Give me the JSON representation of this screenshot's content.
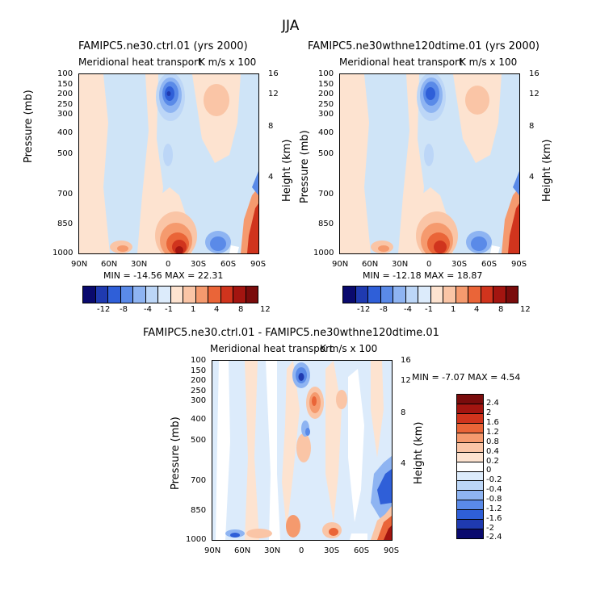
{
  "figure": {
    "title": "JJA"
  },
  "panels": [
    {
      "title": "FAMIPC5.ne30.ctrl.01 (yrs 2000)",
      "subtitle": "Meridional heat transport",
      "units": "K m/s x 100",
      "minmax": "MIN = -14.56   MAX =  22.31"
    },
    {
      "title": "FAMIPC5.ne30wthne120dtime.01 (yrs 2000)",
      "subtitle": "Meridional heat transport",
      "units": "K m/s x 100",
      "minmax": "MIN = -12.18   MAX =  18.87"
    },
    {
      "title": "FAMIPC5.ne30.ctrl.01 - FAMIPC5.ne30wthne120dtime.01",
      "subtitle": "Meridional heat transport",
      "units": "K m/s x 100",
      "minmax": "MIN =   -7.07   MAX =    4.54"
    }
  ],
  "axes": {
    "ylabel": "Pressure (mb)",
    "y2label": "Height (km)",
    "pressure_ticks": [
      "100",
      "150",
      "200",
      "250",
      "300",
      "400",
      "500",
      "700",
      "850",
      "1000"
    ],
    "height_ticks": [
      "16",
      "12",
      "8",
      "4"
    ],
    "lat_ticks": [
      "90N",
      "60N",
      "30N",
      "0",
      "30S",
      "60S",
      "90S"
    ]
  },
  "colorbars": {
    "top_labels": [
      "-12",
      "-8",
      "-4",
      "-1",
      "1",
      "4",
      "8",
      "12"
    ],
    "diff_labels": [
      "2.4",
      "2",
      "1.6",
      "1.2",
      "0.8",
      "0.4",
      "0.2",
      "0",
      "-0.2",
      "-0.4",
      "-0.8",
      "-1.2",
      "-1.6",
      "-2",
      "-2.4"
    ],
    "top_colors": [
      "#0a0a6e",
      "#1f3ab0",
      "#2f5fd8",
      "#5a8ae8",
      "#8eb4f2",
      "#bcd6f7",
      "#dcebfb",
      "#fde3d0",
      "#fac5a6",
      "#f59a6e",
      "#ea6538",
      "#d0341d",
      "#a31510",
      "#7a0c0c"
    ],
    "diff_colors": [
      "#7a0c0c",
      "#a31510",
      "#d0341d",
      "#ea6538",
      "#f59a6e",
      "#fac5a6",
      "#fde3d0",
      "#ffffff",
      "#dcebfb",
      "#bcd6f7",
      "#8eb4f2",
      "#5a8ae8",
      "#2f5fd8",
      "#1f3ab0",
      "#0a0a6e"
    ]
  },
  "chart_data": [
    {
      "type": "heatmap",
      "title": "FAMIPC5.ne30.ctrl.01 (yrs 2000)",
      "subtitle": "Meridional heat transport",
      "units": "K m/s x 100",
      "season": "JJA",
      "x": [
        "90N",
        "60N",
        "30N",
        "0",
        "30S",
        "60S",
        "90S"
      ],
      "xlim": [
        90,
        -90
      ],
      "ylabel": "Pressure (mb)",
      "ylim": [
        1000,
        100
      ],
      "y2label": "Height (km)",
      "min": -14.56,
      "max": 22.31,
      "levels": [
        -12,
        -8,
        -4,
        -1,
        1,
        4,
        8,
        12
      ]
    },
    {
      "type": "heatmap",
      "title": "FAMIPC5.ne30wthne120dtime.01 (yrs 2000)",
      "subtitle": "Meridional heat transport",
      "units": "K m/s x 100",
      "season": "JJA",
      "x": [
        "90N",
        "60N",
        "30N",
        "0",
        "30S",
        "60S",
        "90S"
      ],
      "xlim": [
        90,
        -90
      ],
      "ylabel": "Pressure (mb)",
      "ylim": [
        1000,
        100
      ],
      "y2label": "Height (km)",
      "min": -12.18,
      "max": 18.87,
      "levels": [
        -12,
        -8,
        -4,
        -1,
        1,
        4,
        8,
        12
      ]
    },
    {
      "type": "heatmap",
      "title": "FAMIPC5.ne30.ctrl.01 - FAMIPC5.ne30wthne120dtime.01",
      "subtitle": "Meridional heat transport",
      "units": "K m/s x 100",
      "season": "JJA",
      "x": [
        "90N",
        "60N",
        "30N",
        "0",
        "30S",
        "60S",
        "90S"
      ],
      "xlim": [
        90,
        -90
      ],
      "ylabel": "Pressure (mb)",
      "ylim": [
        1000,
        100
      ],
      "y2label": "Height (km)",
      "min": -7.07,
      "max": 4.54,
      "levels": [
        -2.4,
        -2,
        -1.6,
        -1.2,
        -0.8,
        -0.4,
        -0.2,
        0,
        0.2,
        0.4,
        0.8,
        1.2,
        1.6,
        2,
        2.4
      ]
    }
  ]
}
